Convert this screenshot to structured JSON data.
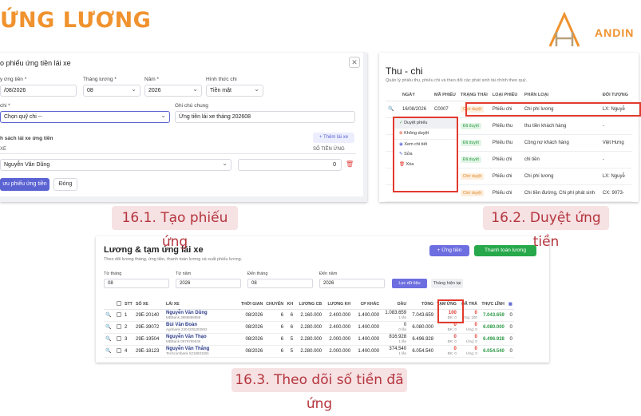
{
  "header": {
    "title": "ỨNG LƯƠNG",
    "brand": "ANDIN"
  },
  "captions": {
    "c1": "16.1. Tạo phiếu ứng",
    "c2": "16.2. Duyệt ứng tiền",
    "c3": "16.3. Theo dõi số tiền đã ứng"
  },
  "shot1": {
    "title": "o phiếu ứng tiền lái xe",
    "labels": {
      "date": "y ứng tiền *",
      "month": "Tháng lương *",
      "year": "Năm *",
      "method": "Hình thức chi",
      "fund": "chi *",
      "note": "Ghi chú chung",
      "list": "h sách lái xe ứng tiền",
      "driver_col": "XE",
      "amount_col": "SỐ TIỀN ỨNG"
    },
    "values": {
      "date": "/08/2026",
      "month": "08",
      "year": "2026",
      "method": "Tiền mặt",
      "fund": "Chọn quỹ chi --",
      "note": "Ứng tiền lái xe tháng 202608",
      "driver": "Nguyễn Văn Dũng",
      "amount": "0"
    },
    "buttons": {
      "add": "+ Thêm lái xe",
      "save": "ưu phiếu ứng tiền",
      "close": "Đóng"
    }
  },
  "shot2": {
    "title": "Thu - chi",
    "desc": "Quản lý phiếu thu, phiếu chi và theo dõi các phát sinh tài chính theo quý.",
    "headers": [
      "",
      "NGÀY",
      "MÃ PHIẾU",
      "TRẠNG THÁI",
      "LOẠI PHIẾU",
      "PHÂN LOẠI",
      "ĐỐI TƯỢNG"
    ],
    "rows": [
      {
        "date": "16/08/2026",
        "code": "C0007",
        "status": "Chờ duyệt",
        "type": "Phiếu chi",
        "cat": "Chi phí lương",
        "obj": "LX: Nguyễ"
      },
      {
        "date": "",
        "code": "",
        "status": "Đã duyệt",
        "type": "Phiếu thu",
        "cat": "thu tiền khách hàng",
        "obj": "-"
      },
      {
        "date": "",
        "code": "",
        "status": "Đã duyệt",
        "type": "Phiếu thu",
        "cat": "Công nợ khách hàng",
        "obj": "Việt Hưng"
      },
      {
        "date": "",
        "code": "",
        "status": "Đã duyệt",
        "type": "Phiếu chi",
        "cat": "chi tiền",
        "obj": "-"
      },
      {
        "date": "",
        "code": "",
        "status": "Chờ duyệt",
        "type": "Phiếu chi",
        "cat": "Chi phí lương",
        "obj": "LX: Nguyễ"
      },
      {
        "date": "",
        "code": "",
        "status": "Chờ duyệt",
        "type": "Phiếu chi",
        "cat": "Chi tiền đường, Chi phí phát sinh",
        "obj": "CX: 9073-"
      }
    ],
    "menu": [
      "Duyệt phiếu",
      "Không duyệt",
      "Xem chi tiết",
      "Sửa",
      "Xóa"
    ]
  },
  "shot3": {
    "title": "Lương & tạm ứng lái xe",
    "desc": "Theo dõi lương tháng, ứng tiền, thanh toán lương và xuất phiếu lương.",
    "buttons": {
      "advance": "+ Ứng tiền",
      "pay": "Thanh toán lương",
      "filter": "Lọc dữ liệu",
      "current": "Tháng hiện tại"
    },
    "filters": {
      "from_month_label": "Từ tháng",
      "from_month": "08",
      "from_year_label": "Từ năm",
      "from_year": "2026",
      "to_month_label": "Đến tháng",
      "to_month": "08",
      "to_year_label": "Đến năm",
      "to_year": "2026"
    },
    "headers": [
      "STT",
      "SỐ XE",
      "LÁI XE",
      "THỜI GIAN",
      "CHUYẾN",
      "KH",
      "LƯƠNG CB",
      "LƯƠNG KH",
      "CP KHÁC",
      "DẦU",
      "TỔNG",
      "TẠM ỨNG",
      "ĐÃ TRẢ",
      "THỰC LĨNH"
    ],
    "rows": [
      {
        "stt": "1",
        "plate": "29E-20140",
        "name": "Nguyễn Văn Dũng",
        "bank": "MBBank 3988888888",
        "time": "08/2026",
        "trips": "6",
        "kh": "6",
        "base": "2.160.000",
        "khsal": "2.400.000",
        "other": "1.400.000",
        "oil": "1.083.659",
        "oil_sub": "1 lần",
        "total": "7.043.659",
        "adv": "100",
        "adv_sub": "ĐK: 0",
        "paid": "0",
        "paid_sub": "Ứng: 100",
        "net": "7.043.659"
      },
      {
        "stt": "2",
        "plate": "29E-39072",
        "name": "Bùi Văn Đoàn",
        "bank": "Agribank 2304205283592",
        "time": "08/2026",
        "trips": "6",
        "kh": "6",
        "base": "2.280.000",
        "khsal": "2.400.000",
        "other": "1.400.000",
        "oil": "0",
        "oil_sub": "0 lần",
        "total": "6.080.000",
        "adv": "0",
        "adv_sub": "ĐK: 0",
        "paid": "0",
        "paid_sub": "Ứng: 0",
        "net": "6.080.000"
      },
      {
        "stt": "3",
        "plate": "29E-19504",
        "name": "Nguyễn Văn Thạo",
        "bank": "MBBank 0979799536",
        "time": "08/2026",
        "trips": "6",
        "kh": "5",
        "base": "2.280.000",
        "khsal": "2.000.000",
        "other": "1.400.000",
        "oil": "816.928",
        "oil_sub": "1 lần",
        "total": "6.496.928",
        "adv": "0",
        "adv_sub": "ĐK: 0",
        "paid": "0",
        "paid_sub": "Ứng: 0",
        "net": "6.496.928"
      },
      {
        "stt": "4",
        "plate": "29E-18123",
        "name": "Nguyễn Văn Thắng",
        "bank": "Techcombank 5219831591",
        "time": "08/2026",
        "trips": "6",
        "kh": "5",
        "base": "2.280.000",
        "khsal": "2.000.000",
        "other": "1.400.000",
        "oil": "374.540",
        "oil_sub": "1 lần",
        "total": "6.054.540",
        "adv": "0",
        "adv_sub": "ĐK: 0",
        "paid": "0",
        "paid_sub": "Ứng: 0",
        "net": "6.054.540"
      }
    ]
  }
}
